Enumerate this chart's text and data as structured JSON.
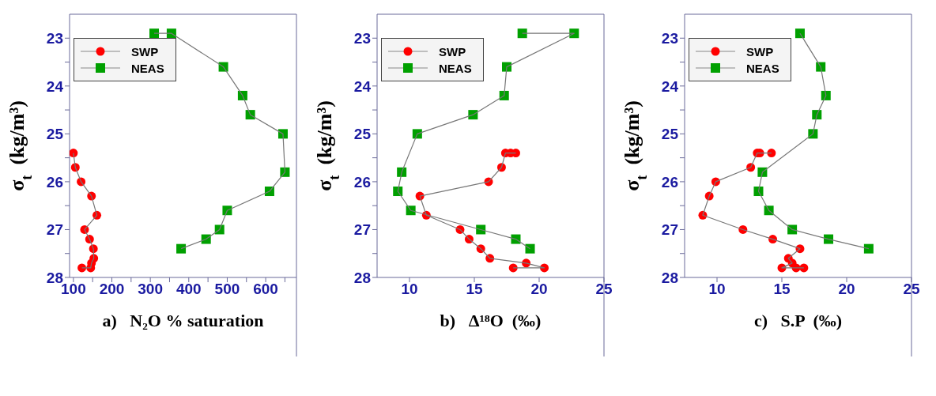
{
  "chart_data": [
    {
      "type": "line",
      "xlabel": "a)   N₂O % saturation",
      "ylabel": "σ$_{t}$ (kg/m³)",
      "xlim": [
        90,
        680
      ],
      "ylim": [
        28,
        22.5
      ],
      "xticks": [
        100,
        {
          "value": 150,
          "label": null
        },
        200,
        {
          "value": 250,
          "label": null
        },
        300,
        {
          "value": 350,
          "label": null
        },
        400,
        {
          "value": 450,
          "label": null
        },
        500,
        {
          "value": 550,
          "label": null
        },
        600,
        {
          "value": 650,
          "label": null
        }
      ],
      "yticks": [
        23,
        {
          "value": 23.5,
          "label": null
        },
        24,
        {
          "value": 24.5,
          "label": null
        },
        25,
        {
          "value": 25.5,
          "label": null
        },
        26,
        {
          "value": 26.5,
          "label": null
        },
        27,
        {
          "value": 27.5,
          "label": null
        },
        28
      ],
      "legend": "top left",
      "line_style": "solid",
      "grid": false,
      "series": [
        {
          "name": "SWP",
          "color": "#ff0000",
          "marker": "circle",
          "x": [
            100,
            105,
            120,
            147,
            161,
            129,
            142,
            152,
            153,
            147,
            145,
            122
          ],
          "values": [
            25.4,
            25.7,
            26.0,
            26.3,
            26.7,
            27.0,
            27.2,
            27.4,
            27.6,
            27.7,
            27.8,
            27.8
          ]
        },
        {
          "name": "NEAS",
          "color": "#00a000",
          "marker": "square",
          "x": [
            310,
            355,
            490,
            540,
            560,
            645,
            650,
            610,
            500,
            480,
            445,
            380
          ],
          "values": [
            22.9,
            22.9,
            23.6,
            24.2,
            24.6,
            25.0,
            25.8,
            26.2,
            26.6,
            27.0,
            27.2,
            27.4
          ]
        }
      ]
    },
    {
      "type": "line",
      "xlabel": "b)   Δ¹⁸O  (‰)",
      "ylabel": "σ$_{t}$ (kg/m³)",
      "xlim": [
        7.5,
        25
      ],
      "ylim": [
        28,
        22.5
      ],
      "xticks": [
        10,
        15,
        20,
        25
      ],
      "yticks": [
        23,
        {
          "value": 23.5,
          "label": null
        },
        24,
        {
          "value": 24.5,
          "label": null
        },
        25,
        {
          "value": 25.5,
          "label": null
        },
        26,
        {
          "value": 26.5,
          "label": null
        },
        27,
        {
          "value": 27.5,
          "label": null
        },
        28
      ],
      "legend": "top left",
      "line_style": "solid",
      "grid": false,
      "series": [
        {
          "name": "SWP",
          "color": "#ff0000",
          "marker": "circle",
          "x": [
            18.2,
            17.8,
            17.4,
            17.1,
            16.1,
            10.8,
            11.3,
            13.9,
            14.6,
            15.5,
            16.2,
            19.0,
            20.4,
            18.0
          ],
          "values": [
            25.4,
            25.4,
            25.4,
            25.7,
            26.0,
            26.3,
            26.7,
            27.0,
            27.2,
            27.4,
            27.6,
            27.7,
            27.8,
            27.8
          ]
        },
        {
          "name": "NEAS",
          "color": "#00a000",
          "marker": "square",
          "x": [
            18.7,
            22.7,
            17.5,
            17.3,
            14.9,
            10.6,
            9.4,
            9.1,
            10.1,
            15.5,
            18.2,
            19.3
          ],
          "values": [
            22.9,
            22.9,
            23.6,
            24.2,
            24.6,
            25.0,
            25.8,
            26.2,
            26.6,
            27.0,
            27.2,
            27.4
          ]
        }
      ]
    },
    {
      "type": "line",
      "xlabel": "c)   S.P  (‰)",
      "ylabel": "σ$_{t}$ (kg/m³)",
      "xlim": [
        7.5,
        25
      ],
      "ylim": [
        28,
        22.5
      ],
      "xticks": [
        10,
        15,
        20,
        25
      ],
      "yticks": [
        23,
        {
          "value": 23.5,
          "label": null
        },
        24,
        {
          "value": 24.5,
          "label": null
        },
        25,
        {
          "value": 25.5,
          "label": null
        },
        26,
        {
          "value": 26.5,
          "label": null
        },
        27,
        {
          "value": 27.5,
          "label": null
        },
        28
      ],
      "legend": "top left",
      "line_style": "solid",
      "grid": false,
      "series": [
        {
          "name": "SWP",
          "color": "#ff0000",
          "marker": "circle",
          "x": [
            14.2,
            13.3,
            13.1,
            12.6,
            9.9,
            9.4,
            8.9,
            12.0,
            14.3,
            16.4,
            15.5,
            15.8,
            15.0,
            16.1,
            16.7
          ],
          "values": [
            25.4,
            25.4,
            25.4,
            25.7,
            26.0,
            26.3,
            26.7,
            27.0,
            27.2,
            27.4,
            27.6,
            27.7,
            27.8,
            27.8,
            27.8
          ]
        },
        {
          "name": "NEAS",
          "color": "#00a000",
          "marker": "square",
          "x": [
            16.4,
            18.0,
            18.4,
            17.7,
            17.4,
            13.5,
            13.2,
            14.0,
            15.8,
            18.6,
            21.7
          ],
          "values": [
            22.9,
            23.6,
            24.2,
            24.6,
            25.0,
            25.8,
            26.2,
            26.6,
            27.0,
            27.2,
            27.4
          ]
        }
      ]
    }
  ]
}
